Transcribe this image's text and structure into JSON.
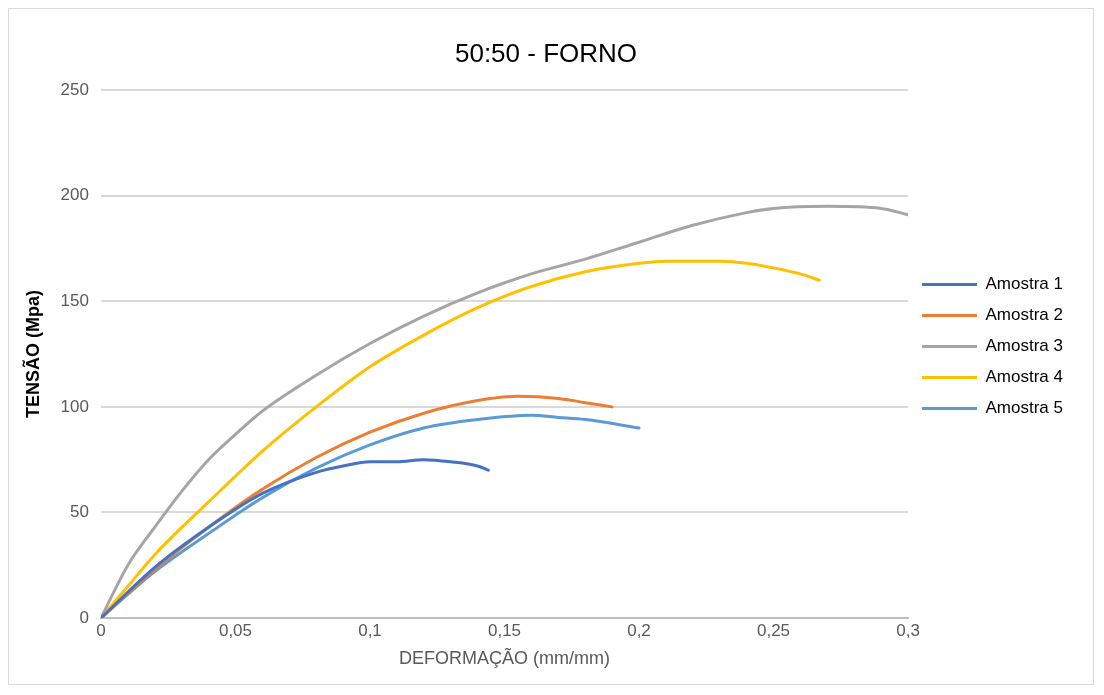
{
  "chart_data": {
    "type": "line",
    "title": "50:50 - FORNO",
    "xlabel": "DEFORMAÇÃO (mm/mm)",
    "ylabel": "TENSÃO (Mpa)",
    "xlim": [
      0,
      0.3
    ],
    "xticks": [
      {
        "value": 0,
        "label": "0"
      },
      {
        "value": 0.05,
        "label": "0,05"
      },
      {
        "value": 0.1,
        "label": "0,1"
      },
      {
        "value": 0.15,
        "label": "0,15"
      },
      {
        "value": 0.2,
        "label": "0,2"
      },
      {
        "value": 0.25,
        "label": "0,25"
      },
      {
        "value": 0.3,
        "label": "0,3"
      }
    ],
    "ylim": [
      0,
      250
    ],
    "yticks": [
      0,
      50,
      100,
      150,
      200,
      250
    ],
    "grid": "y",
    "legend": "right",
    "marker": "none",
    "line_style": "solid",
    "series": [
      {
        "name": "Amostra 1",
        "color": "#4472c4",
        "x": [
          0,
          0.02,
          0.04,
          0.06,
          0.08,
          0.09,
          0.1,
          0.11,
          0.12,
          0.13,
          0.14,
          0.144
        ],
        "values": [
          0,
          24,
          43,
          59,
          69,
          72,
          74,
          74,
          75,
          74,
          72,
          70
        ]
      },
      {
        "name": "Amostra 2",
        "color": "#ed7d31",
        "x": [
          0,
          0.02,
          0.04,
          0.06,
          0.08,
          0.1,
          0.12,
          0.14,
          0.155,
          0.17,
          0.18,
          0.19
        ],
        "values": [
          0,
          23,
          43,
          61,
          76,
          88,
          97,
          103,
          105,
          104,
          102,
          100
        ]
      },
      {
        "name": "Amostra 3",
        "color": "#a5a5a5",
        "x": [
          0,
          0.01,
          0.02,
          0.03,
          0.04,
          0.05,
          0.06,
          0.08,
          0.1,
          0.12,
          0.14,
          0.16,
          0.18,
          0.2,
          0.22,
          0.24,
          0.25,
          0.27,
          0.29,
          0.3
        ],
        "values": [
          0,
          25,
          43,
          60,
          75,
          87,
          98,
          115,
          130,
          143,
          154,
          163,
          170,
          178,
          186,
          192,
          194,
          195,
          194,
          191
        ]
      },
      {
        "name": "Amostra 4",
        "color": "#ffc000",
        "x": [
          0,
          0.01,
          0.02,
          0.04,
          0.06,
          0.08,
          0.1,
          0.12,
          0.14,
          0.16,
          0.18,
          0.2,
          0.21,
          0.23,
          0.24,
          0.26,
          0.267
        ],
        "values": [
          0,
          15,
          30,
          55,
          79,
          100,
          119,
          134,
          147,
          157,
          164,
          168,
          169,
          169,
          168,
          163,
          160
        ]
      },
      {
        "name": "Amostra 5",
        "color": "#5b9bd5",
        "x": [
          0,
          0.02,
          0.04,
          0.06,
          0.08,
          0.1,
          0.12,
          0.14,
          0.16,
          0.17,
          0.18,
          0.2
        ],
        "values": [
          0,
          22,
          40,
          57,
          71,
          82,
          90,
          94,
          96,
          95,
          94,
          90
        ]
      }
    ]
  }
}
